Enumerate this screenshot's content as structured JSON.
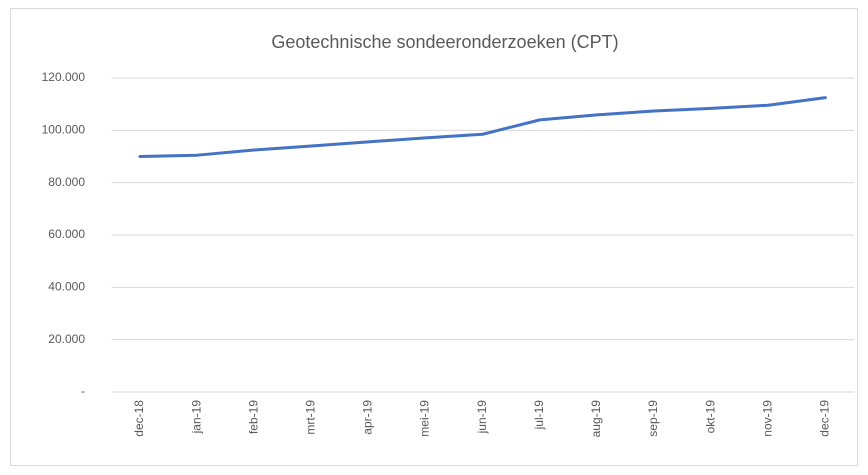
{
  "chart_data": {
    "type": "line",
    "title": "Geotechnische sondeeronderzoeken (CPT)",
    "categories": [
      "dec-18",
      "jan-19",
      "feb-19",
      "mrt-19",
      "apr-19",
      "mei-19",
      "jun-19",
      "jul-19",
      "aug-19",
      "sep-19",
      "okt-19",
      "nov-19",
      "dec-19"
    ],
    "values": [
      90000,
      90500,
      92500,
      94000,
      95600,
      97100,
      98500,
      104000,
      105900,
      107400,
      108400,
      109600,
      112500
    ],
    "color": "#4472c4",
    "ylim": [
      0,
      120000
    ],
    "yticks": [
      {
        "value": 0,
        "label": "-"
      },
      {
        "value": 20000,
        "label": "20.000"
      },
      {
        "value": 40000,
        "label": "40.000"
      },
      {
        "value": 60000,
        "label": "60.000"
      },
      {
        "value": 80000,
        "label": "80.000"
      },
      {
        "value": 100000,
        "label": "100.000"
      },
      {
        "value": 120000,
        "label": "120.000"
      }
    ],
    "grid": true
  }
}
